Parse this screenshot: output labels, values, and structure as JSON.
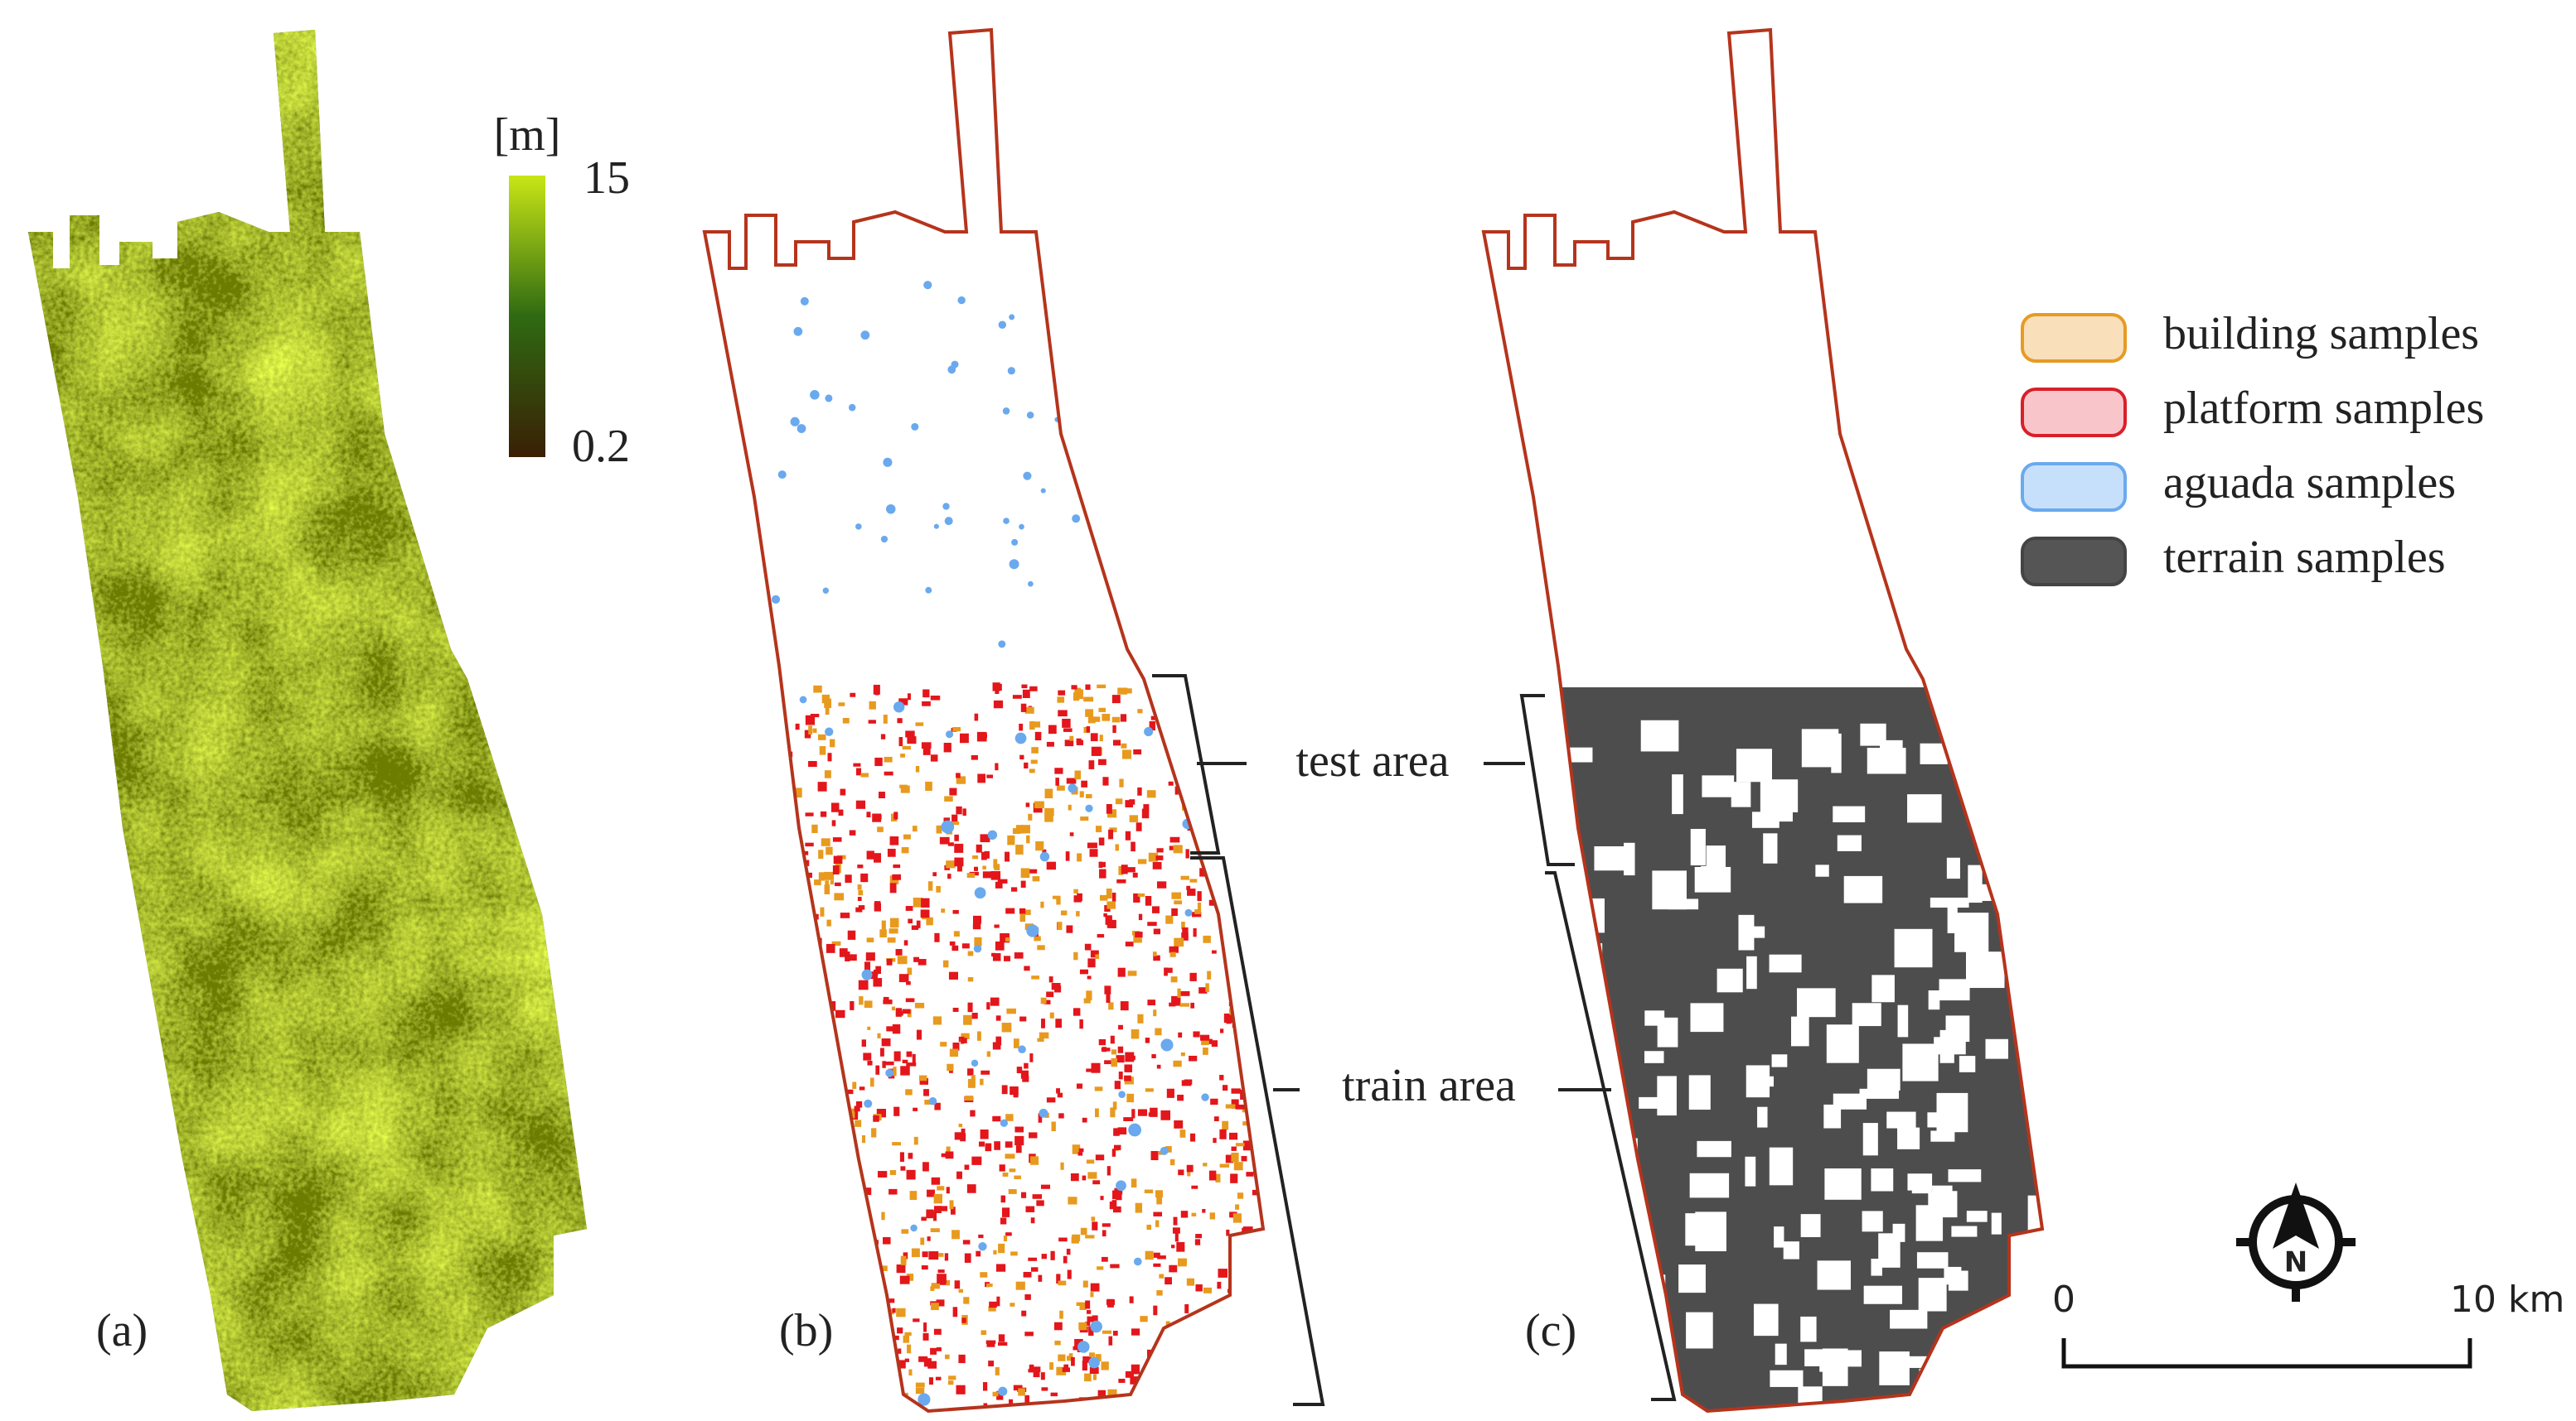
{
  "colorbar": {
    "unit": "[m]",
    "max": 15,
    "min": 0.2
  },
  "panels": [
    {
      "label": "(a)"
    },
    {
      "label": "(b)"
    },
    {
      "label": "(c)"
    }
  ],
  "legend": [
    "building samples",
    "platform samples",
    "aguada samples",
    "terrain samples"
  ],
  "annotations": {
    "test": "test area",
    "train": "train area"
  },
  "compass": "N",
  "scale_bar": {
    "start": "0",
    "end": "10 km"
  }
}
